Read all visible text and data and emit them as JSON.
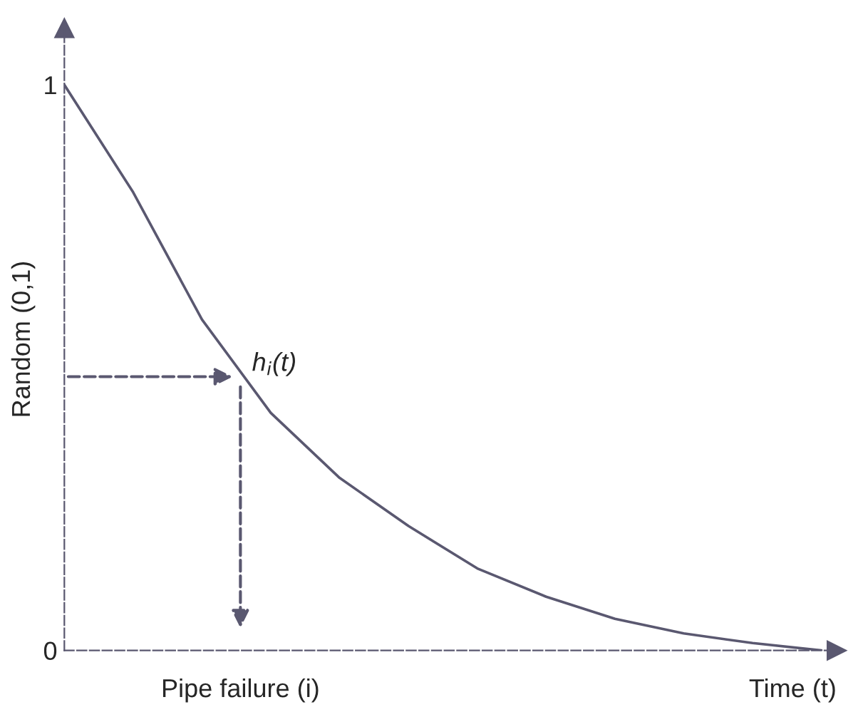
{
  "chart_data": {
    "type": "line",
    "xlabel": "Time (t)",
    "ylabel": "Random (0,1)",
    "categories": [
      null,
      null,
      null,
      null,
      null,
      null,
      null,
      null,
      null,
      null,
      null,
      null
    ],
    "series": [
      {
        "color": "#5a5870",
        "values": [
          1.0,
          0.81,
          0.585,
          0.42,
          0.305,
          0.22,
          0.145,
          0.095,
          0.056,
          0.03,
          0.013,
          0
        ]
      }
    ],
    "ylim": [
      0,
      1.1
    ],
    "yticks": [
      0,
      1
    ],
    "tick_labels": "y",
    "grid": false,
    "marker": "none",
    "line_style": "solid",
    "annotations": [
      "h$_{i}$(t)",
      "Pipe failure (i)"
    ]
  }
}
